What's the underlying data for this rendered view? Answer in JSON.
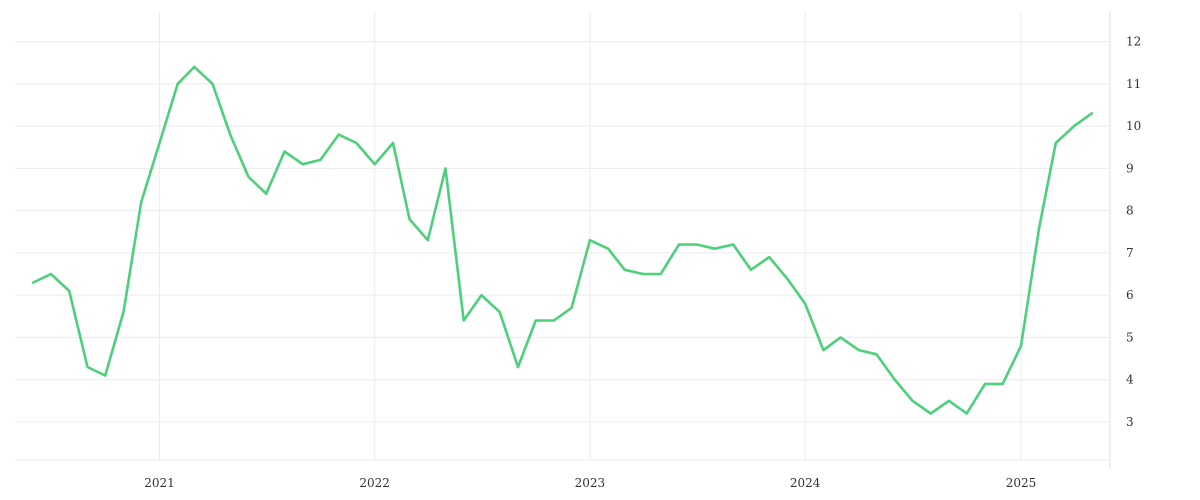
{
  "chart_data": {
    "type": "line",
    "title": "",
    "xlabel": "",
    "ylabel": "",
    "x_ticks": [
      "2021",
      "2022",
      "2023",
      "2024",
      "2025"
    ],
    "y_ticks": [
      3,
      4,
      5,
      6,
      7,
      8,
      9,
      10,
      11,
      12
    ],
    "xlim": [
      "2020-05-01",
      "2025-06-01"
    ],
    "ylim": [
      2.1,
      12.7
    ],
    "y_axis_position": "right",
    "grid": true,
    "series": [
      {
        "color": "#4cd07a",
        "x": [
          "2020-06-01",
          "2020-07-01",
          "2020-08-01",
          "2020-09-01",
          "2020-10-01",
          "2020-11-01",
          "2020-12-01",
          "2021-01-01",
          "2021-02-01",
          "2021-03-01",
          "2021-04-01",
          "2021-05-01",
          "2021-06-01",
          "2021-07-01",
          "2021-08-01",
          "2021-09-01",
          "2021-10-01",
          "2021-11-01",
          "2021-12-01",
          "2022-01-01",
          "2022-02-01",
          "2022-03-01",
          "2022-04-01",
          "2022-05-01",
          "2022-06-01",
          "2022-07-01",
          "2022-08-01",
          "2022-09-01",
          "2022-10-01",
          "2022-11-01",
          "2022-12-01",
          "2023-01-01",
          "2023-02-01",
          "2023-03-01",
          "2023-04-01",
          "2023-05-01",
          "2023-06-01",
          "2023-07-01",
          "2023-08-01",
          "2023-09-01",
          "2023-10-01",
          "2023-11-01",
          "2023-12-01",
          "2024-01-01",
          "2024-02-01",
          "2024-03-01",
          "2024-04-01",
          "2024-05-01",
          "2024-06-01",
          "2024-07-01",
          "2024-08-01",
          "2024-09-01",
          "2024-10-01",
          "2024-11-01",
          "2024-12-01",
          "2025-01-01",
          "2025-02-01",
          "2025-03-01",
          "2025-04-01",
          "2025-05-01"
        ],
        "values": [
          6.3,
          6.5,
          6.1,
          4.3,
          4.1,
          5.6,
          8.2,
          9.6,
          11.0,
          11.4,
          11.0,
          9.8,
          8.8,
          8.4,
          9.4,
          9.1,
          9.2,
          9.8,
          9.6,
          9.1,
          9.6,
          7.8,
          7.3,
          9.0,
          5.4,
          6.0,
          5.6,
          4.3,
          5.4,
          5.4,
          5.7,
          7.3,
          7.1,
          6.6,
          6.5,
          6.5,
          7.2,
          7.2,
          7.1,
          7.2,
          6.6,
          6.9,
          6.4,
          5.8,
          4.7,
          5.0,
          4.7,
          4.6,
          4.0,
          3.5,
          3.2,
          3.5,
          3.2,
          3.9,
          3.9,
          4.8,
          7.6,
          9.6,
          10.0,
          10.3
        ]
      }
    ]
  }
}
